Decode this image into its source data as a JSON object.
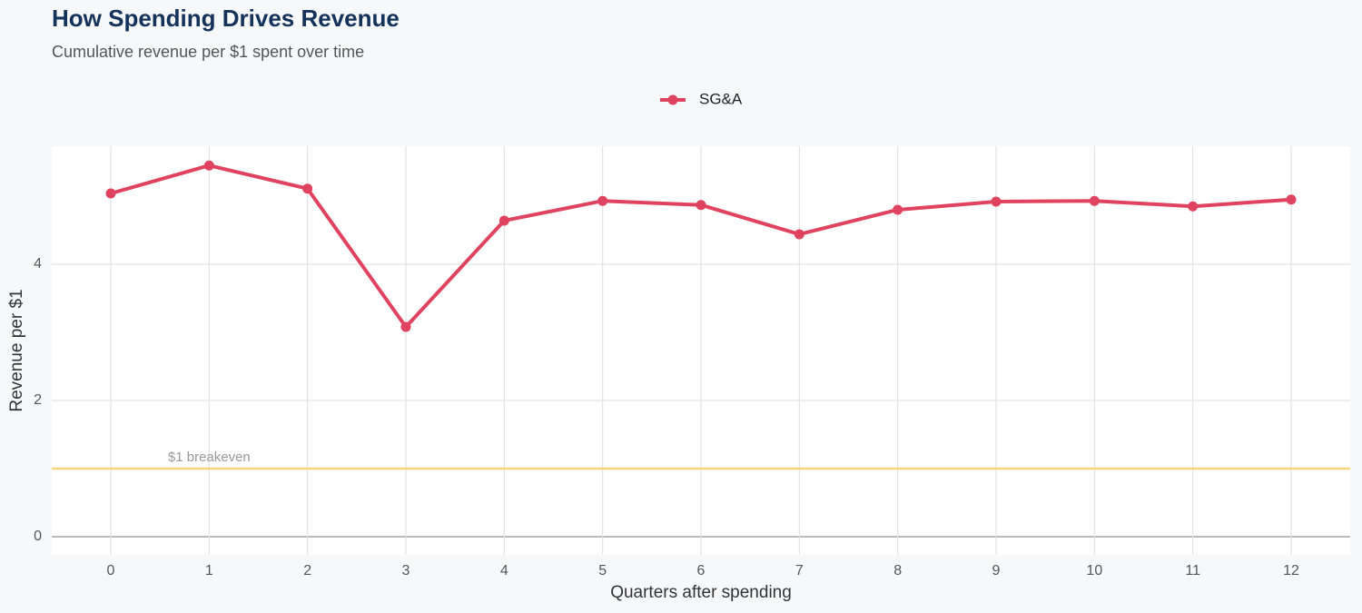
{
  "chart_data": {
    "type": "line",
    "title": "How Spending Drives Revenue",
    "subtitle": "Cumulative revenue per $1 spent over time",
    "x_label": "Quarters after spending",
    "y_label": "Revenue per $1",
    "x": [
      0,
      1,
      2,
      3,
      4,
      5,
      6,
      7,
      8,
      9,
      10,
      11,
      12
    ],
    "series": [
      {
        "name": "SG&A",
        "color": "#e0435f",
        "values": [
          5.04,
          5.45,
          5.11,
          3.08,
          4.64,
          4.93,
          4.87,
          4.44,
          4.8,
          4.92,
          4.93,
          4.85,
          4.95
        ]
      }
    ],
    "xlim": [
      -0.6,
      12.6
    ],
    "xticks": [
      0,
      1,
      2,
      3,
      4,
      5,
      6,
      7,
      8,
      9,
      10,
      11,
      12
    ],
    "ylim": [
      -0.267,
      5.733
    ],
    "yticks": [
      0,
      2,
      4
    ],
    "reference_line": {
      "value": 1,
      "label": "$1 breakeven",
      "color": "#f5d47a"
    },
    "grid": true,
    "legend": "top"
  }
}
